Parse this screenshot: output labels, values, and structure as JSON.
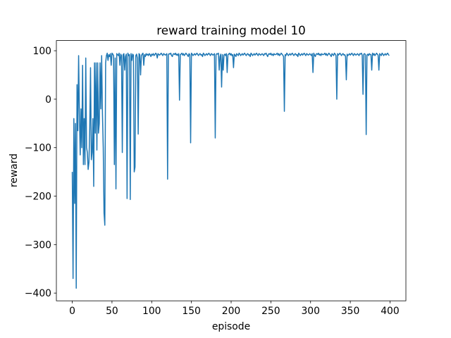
{
  "chart_data": {
    "type": "line",
    "title": "reward training model 10",
    "xlabel": "episode",
    "ylabel": "reward",
    "xlim": [
      -20,
      420
    ],
    "ylim": [
      -416,
      121
    ],
    "xticks": [
      0,
      50,
      100,
      150,
      200,
      250,
      300,
      350,
      400
    ],
    "yticks": [
      {
        "value": -400,
        "label": "−400"
      },
      {
        "value": -300,
        "label": "−300"
      },
      {
        "value": -200,
        "label": "−200"
      },
      {
        "value": -100,
        "label": "−100"
      },
      0,
      100
    ],
    "grid": false,
    "series": [
      {
        "color": "#1f77b4",
        "x": [
          0,
          1,
          2,
          3,
          4,
          5,
          6,
          7,
          8,
          9,
          10,
          11,
          12,
          13,
          14,
          15,
          16,
          17,
          18,
          19,
          20,
          21,
          22,
          23,
          24,
          25,
          26,
          27,
          28,
          29,
          30,
          31,
          32,
          33,
          34,
          35,
          36,
          37,
          38,
          39,
          40,
          41,
          42,
          43,
          44,
          45,
          46,
          47,
          48,
          49,
          50,
          51,
          52,
          53,
          54,
          55,
          56,
          57,
          58,
          59,
          60,
          61,
          62,
          63,
          64,
          65,
          66,
          67,
          68,
          69,
          70,
          71,
          72,
          73,
          74,
          75,
          76,
          77,
          78,
          79,
          80,
          81,
          82,
          83,
          84,
          85,
          86,
          87,
          88,
          89,
          90,
          91,
          92,
          93,
          94,
          95,
          96,
          97,
          98,
          99,
          100,
          101,
          102,
          103,
          104,
          105,
          106,
          107,
          108,
          109,
          110,
          111,
          112,
          113,
          114,
          115,
          116,
          117,
          118,
          119,
          120,
          121,
          122,
          123,
          124,
          125,
          126,
          127,
          128,
          129,
          130,
          131,
          132,
          133,
          134,
          135,
          136,
          137,
          138,
          139,
          140,
          141,
          142,
          143,
          144,
          145,
          146,
          147,
          148,
          149,
          150,
          151,
          152,
          153,
          154,
          155,
          156,
          157,
          158,
          159,
          160,
          161,
          162,
          163,
          164,
          165,
          166,
          167,
          168,
          169,
          170,
          171,
          172,
          173,
          174,
          175,
          176,
          177,
          178,
          179,
          180,
          181,
          182,
          183,
          184,
          185,
          186,
          187,
          188,
          189,
          190,
          191,
          192,
          193,
          194,
          195,
          196,
          197,
          198,
          199,
          200,
          201,
          202,
          203,
          204,
          205,
          206,
          207,
          208,
          209,
          210,
          211,
          212,
          213,
          214,
          215,
          216,
          217,
          218,
          219,
          220,
          221,
          222,
          223,
          224,
          225,
          226,
          227,
          228,
          229,
          230,
          231,
          232,
          233,
          234,
          235,
          236,
          237,
          238,
          239,
          240,
          241,
          242,
          243,
          244,
          245,
          246,
          247,
          248,
          249,
          250,
          251,
          252,
          253,
          254,
          255,
          256,
          257,
          258,
          259,
          260,
          261,
          262,
          263,
          264,
          265,
          266,
          267,
          268,
          269,
          270,
          271,
          272,
          273,
          274,
          275,
          276,
          277,
          278,
          279,
          280,
          281,
          282,
          283,
          284,
          285,
          286,
          287,
          288,
          289,
          290,
          291,
          292,
          293,
          294,
          295,
          296,
          297,
          298,
          299,
          300,
          301,
          302,
          303,
          304,
          305,
          306,
          307,
          308,
          309,
          310,
          311,
          312,
          313,
          314,
          315,
          316,
          317,
          318,
          319,
          320,
          321,
          322,
          323,
          324,
          325,
          326,
          327,
          328,
          329,
          330,
          331,
          332,
          333,
          334,
          335,
          336,
          337,
          338,
          339,
          340,
          341,
          342,
          343,
          344,
          345,
          346,
          347,
          348,
          349,
          350,
          351,
          352,
          353,
          354,
          355,
          356,
          357,
          358,
          359,
          360,
          361,
          362,
          363,
          364,
          365,
          366,
          367,
          368,
          369,
          370,
          371,
          372,
          373,
          374,
          375,
          376,
          377,
          378,
          379,
          380,
          381,
          382,
          383,
          384,
          385,
          386,
          387,
          388,
          389,
          390,
          391,
          392,
          393,
          394,
          395,
          396,
          397,
          398,
          399
        ],
        "values": [
          -150,
          -370,
          -40,
          -215,
          -50,
          -390,
          30,
          -65,
          90,
          -30,
          -115,
          -20,
          -100,
          70,
          -135,
          -40,
          -135,
          85,
          -100,
          -110,
          -145,
          -130,
          -60,
          65,
          -125,
          -110,
          -40,
          -180,
          75,
          -70,
          75,
          -105,
          75,
          -70,
          -50,
          75,
          -20,
          90,
          -30,
          -100,
          -235,
          -260,
          75,
          90,
          95,
          80,
          92,
          88,
          94,
          70,
          95,
          93,
          90,
          -135,
          85,
          -185,
          94,
          92,
          90,
          95,
          70,
          93,
          90,
          -110,
          92,
          94,
          60,
          88,
          93,
          -205,
          95,
          90,
          92,
          -207,
          94,
          80,
          93,
          91,
          -150,
          -140,
          90,
          93,
          85,
          -72,
          94,
          92,
          50,
          90,
          93,
          95,
          70,
          92,
          88,
          94,
          91,
          93,
          90,
          94,
          92,
          88,
          93,
          91,
          94,
          90,
          92,
          95,
          93,
          85,
          94,
          92,
          91,
          93,
          95,
          92,
          90,
          94,
          93,
          91,
          92,
          94,
          -165,
          92,
          94,
          93,
          95,
          90,
          88,
          93,
          94,
          92,
          95,
          91,
          93,
          90,
          94,
          -2,
          92,
          93,
          95,
          91,
          94,
          90,
          92,
          95,
          93,
          91,
          88,
          94,
          92,
          -90,
          95,
          93,
          90,
          92,
          94,
          91,
          93,
          95,
          92,
          90,
          93,
          94,
          91,
          92,
          88,
          95,
          93,
          90,
          92,
          94,
          91,
          93,
          95,
          92,
          90,
          94,
          93,
          91,
          92,
          94,
          -80,
          92,
          94,
          93,
          95,
          60,
          88,
          93,
          25,
          92,
          60,
          91,
          93,
          90,
          94,
          55,
          92,
          93,
          95,
          91,
          94,
          90,
          92,
          65,
          93,
          91,
          88,
          94,
          92,
          90,
          95,
          93,
          90,
          92,
          94,
          91,
          93,
          95,
          92,
          90,
          93,
          94,
          91,
          92,
          88,
          95,
          93,
          90,
          92,
          94,
          91,
          93,
          95,
          92,
          90,
          94,
          93,
          91,
          92,
          94,
          92,
          90,
          94,
          93,
          95,
          91,
          88,
          93,
          94,
          92,
          95,
          91,
          93,
          90,
          94,
          92,
          92,
          93,
          95,
          91,
          94,
          90,
          92,
          95,
          93,
          91,
          88,
          -25,
          92,
          90,
          95,
          93,
          90,
          92,
          94,
          91,
          93,
          95,
          92,
          90,
          93,
          94,
          91,
          92,
          88,
          95,
          93,
          90,
          92,
          94,
          91,
          93,
          95,
          92,
          90,
          94,
          93,
          91,
          92,
          94,
          92,
          90,
          94,
          55,
          95,
          91,
          88,
          93,
          94,
          92,
          95,
          91,
          93,
          90,
          94,
          92,
          92,
          93,
          95,
          91,
          94,
          90,
          92,
          95,
          93,
          91,
          88,
          94,
          92,
          90,
          95,
          93,
          90,
          0,
          94,
          91,
          93,
          95,
          92,
          90,
          93,
          94,
          91,
          92,
          88,
          40,
          93,
          90,
          92,
          94,
          91,
          93,
          95,
          92,
          90,
          94,
          93,
          91,
          92,
          94,
          92,
          90,
          94,
          93,
          95,
          91,
          10,
          93,
          94,
          92,
          -73,
          91,
          93,
          90,
          94,
          92,
          92,
          60,
          95,
          91,
          94,
          90,
          92,
          95,
          93,
          91,
          60,
          94,
          92,
          90,
          95,
          93,
          90,
          92,
          94,
          91,
          93,
          95,
          92,
          90
        ]
      }
    ]
  }
}
